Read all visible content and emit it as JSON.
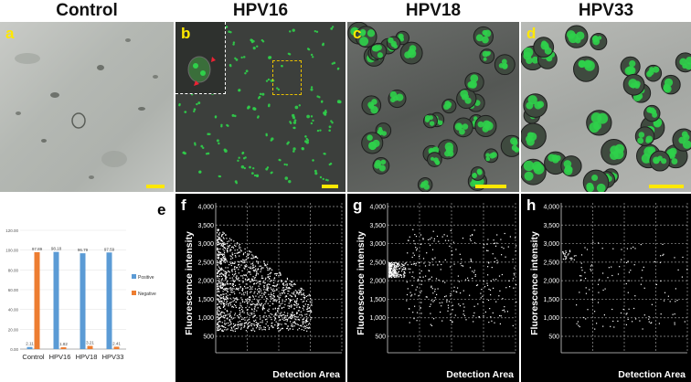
{
  "headers": [
    "Control",
    "HPV16",
    "HPV18",
    "HPV33"
  ],
  "panel_letters": {
    "a": "a",
    "b": "b",
    "c": "c",
    "d": "d",
    "e": "e",
    "f": "f",
    "g": "g",
    "h": "h"
  },
  "colors": {
    "letter_top": "#ffe800",
    "letter_scatter": "#ffffff",
    "letter_chart": "#000000",
    "positive": "#5b9bd5",
    "negative": "#ed7d31",
    "scale_bar": "#ffe800",
    "cells": "#2fd04a"
  },
  "chart_data": [
    {
      "type": "bar",
      "categories": [
        "Control",
        "HPV16",
        "HPV18",
        "HPV33"
      ],
      "series": [
        {
          "name": "Positive",
          "values": [
            2.11,
            98.18,
            96.79,
            97.59
          ]
        },
        {
          "name": "Negative",
          "values": [
            97.89,
            1.82,
            3.21,
            2.41
          ]
        }
      ],
      "data_labels": [
        [
          "2.11",
          "97.89"
        ],
        [
          "98.18",
          "1.82"
        ],
        [
          "96.79",
          "3.21"
        ],
        [
          "97.59",
          "2.41"
        ]
      ],
      "ylim": [
        0,
        120
      ],
      "yticks": [
        "0.00",
        "20.00",
        "40.00",
        "60.00",
        "80.00",
        "100.00",
        "120.00"
      ],
      "legend_position": "right"
    },
    {
      "type": "scatter",
      "panel": "f",
      "ylabel": "Fluorescence intensity",
      "xlabel": "Detection Area",
      "yticks": [
        "500",
        "1,000",
        "1,500",
        "2,000",
        "2,500",
        "3,000",
        "3,500",
        "4,000"
      ],
      "ylim": [
        500,
        4000
      ],
      "description_shape": "dense"
    },
    {
      "type": "scatter",
      "panel": "g",
      "ylabel": "Fluorescence intensity",
      "xlabel": "Detection Area",
      "yticks": [
        "500",
        "1,000",
        "1,500",
        "2,000",
        "2,500",
        "3,000",
        "3,500",
        "4,000"
      ],
      "ylim": [
        500,
        4000
      ],
      "description_shape": "band"
    },
    {
      "type": "scatter",
      "panel": "h",
      "ylabel": "Fluorescence intensity",
      "xlabel": "Detection Area",
      "yticks": [
        "500",
        "1,000",
        "1,500",
        "2,000",
        "2,500",
        "3,000",
        "3,500",
        "4,000"
      ],
      "ylim": [
        500,
        4000
      ],
      "description_shape": "sparse"
    }
  ]
}
